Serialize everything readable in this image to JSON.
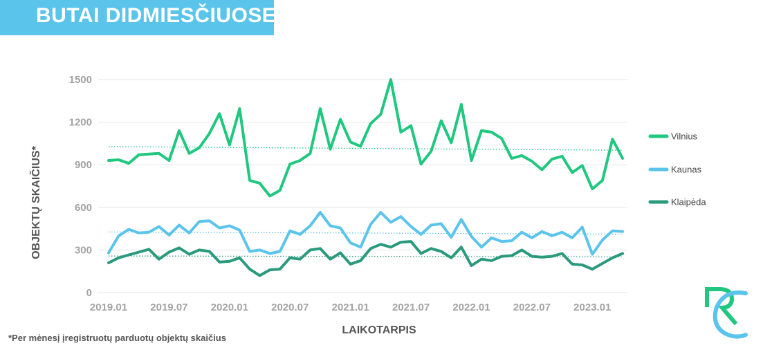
{
  "header": {
    "title": "BUTAI DIDMIESČIUOSE"
  },
  "footnote": "*Per mėnesį įregistruotų parduotų objektų skaičius",
  "logo": {
    "icon": "rc-logo-icon"
  },
  "colors": {
    "banner": "#5bc4eb",
    "vilnius": "#1fc77f",
    "kaunas": "#5bc4eb",
    "klaipeda": "#2a9a7c",
    "grid": "#e6e6e6"
  },
  "chart_data": {
    "type": "line",
    "title": "BUTAI DIDMIESČIUOSE",
    "xlabel": "LAIKOTARPIS",
    "ylabel": "OBJEKTŲ SKAIČIUS*",
    "ylim": [
      0,
      1500
    ],
    "yticks": [
      "0",
      "300",
      "600",
      "900",
      "1200",
      "1500"
    ],
    "x_start": "2019.01",
    "xtick_labels": [
      "2019.01",
      "2019.07",
      "2020.01",
      "2020.07",
      "2021.01",
      "2021.07",
      "2022.01",
      "2022.07",
      "2023.01"
    ],
    "grid": true,
    "trendlines": "dotted linear trend per series",
    "legend_position": "right",
    "series": [
      {
        "name": "Vilnius",
        "color": "#1fc77f",
        "values": [
          930,
          935,
          910,
          970,
          975,
          980,
          930,
          1140,
          980,
          1020,
          1120,
          1260,
          1040,
          1295,
          790,
          770,
          680,
          720,
          905,
          930,
          980,
          1295,
          1010,
          1220,
          1060,
          1030,
          1190,
          1255,
          1500,
          1130,
          1175,
          905,
          995,
          1210,
          1055,
          1325,
          930,
          1140,
          1130,
          1085,
          945,
          965,
          925,
          865,
          940,
          960,
          845,
          895,
          730,
          790,
          1080,
          945
        ]
      },
      {
        "name": "Kaunas",
        "color": "#5bc4eb",
        "values": [
          280,
          400,
          445,
          420,
          425,
          465,
          405,
          475,
          420,
          500,
          505,
          455,
          470,
          440,
          290,
          300,
          275,
          290,
          435,
          410,
          470,
          565,
          470,
          455,
          350,
          320,
          480,
          565,
          495,
          535,
          465,
          410,
          475,
          485,
          390,
          515,
          395,
          320,
          385,
          360,
          365,
          425,
          385,
          430,
          400,
          425,
          385,
          460,
          270,
          370,
          435,
          430
        ]
      },
      {
        "name": "Klaipėda",
        "color": "#2a9a7c",
        "values": [
          210,
          245,
          265,
          285,
          305,
          235,
          285,
          315,
          270,
          300,
          290,
          215,
          220,
          245,
          165,
          120,
          160,
          165,
          245,
          235,
          300,
          310,
          235,
          280,
          200,
          225,
          310,
          340,
          320,
          355,
          360,
          275,
          310,
          290,
          245,
          320,
          190,
          235,
          225,
          255,
          260,
          300,
          255,
          250,
          255,
          275,
          200,
          195,
          165,
          205,
          245,
          275
        ]
      }
    ]
  }
}
